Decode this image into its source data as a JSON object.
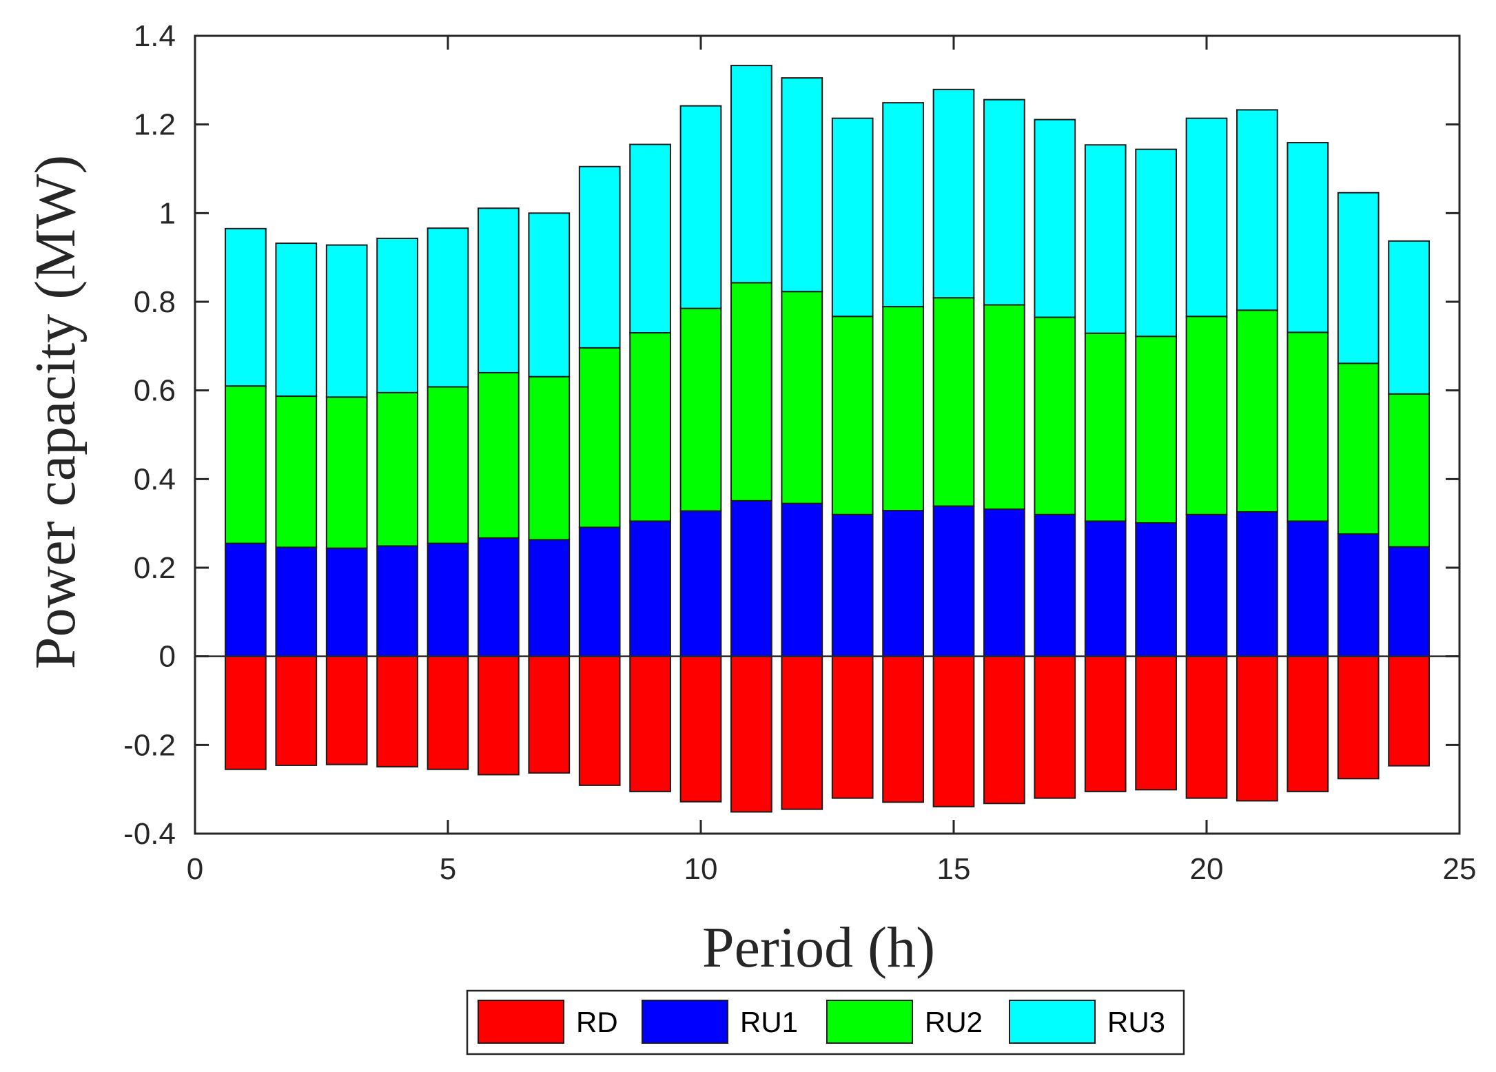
{
  "chart_data": {
    "type": "bar",
    "stacked": true,
    "title": "",
    "xlabel": "Period (h)",
    "ylabel": "Power capacity (MW)",
    "xlim": [
      0,
      25
    ],
    "ylim": [
      -0.4,
      1.4
    ],
    "xticks": [
      "0",
      "5",
      "10",
      "15",
      "20",
      "25"
    ],
    "yticks": [
      "-0.4",
      "-0.2",
      "0",
      "0.2",
      "0.4",
      "0.6",
      "0.8",
      "1",
      "1.2",
      "1.4"
    ],
    "grid": false,
    "legend_position": "bottom",
    "x": [
      1,
      2,
      3,
      4,
      5,
      6,
      7,
      8,
      9,
      10,
      11,
      12,
      13,
      14,
      15,
      16,
      17,
      18,
      19,
      20,
      21,
      22,
      23,
      24
    ],
    "series": [
      {
        "name": "RD",
        "color": "#ff0000",
        "values": [
          -0.255,
          -0.246,
          -0.244,
          -0.249,
          -0.255,
          -0.267,
          -0.263,
          -0.291,
          -0.305,
          -0.328,
          -0.351,
          -0.345,
          -0.32,
          -0.329,
          -0.339,
          -0.332,
          -0.32,
          -0.305,
          -0.301,
          -0.32,
          -0.326,
          -0.305,
          -0.276,
          -0.247
        ]
      },
      {
        "name": "RU1",
        "color": "#0000ff",
        "values": [
          0.255,
          0.246,
          0.244,
          0.249,
          0.255,
          0.267,
          0.263,
          0.291,
          0.305,
          0.328,
          0.351,
          0.345,
          0.32,
          0.329,
          0.339,
          0.332,
          0.32,
          0.305,
          0.301,
          0.32,
          0.326,
          0.305,
          0.276,
          0.247
        ]
      },
      {
        "name": "RU2",
        "color": "#00ff00",
        "values": [
          0.355,
          0.341,
          0.341,
          0.346,
          0.353,
          0.373,
          0.368,
          0.405,
          0.425,
          0.457,
          0.492,
          0.478,
          0.447,
          0.46,
          0.47,
          0.461,
          0.445,
          0.424,
          0.421,
          0.447,
          0.455,
          0.426,
          0.385,
          0.345
        ]
      },
      {
        "name": "RU3",
        "color": "#00ffff",
        "values": [
          0.355,
          0.345,
          0.343,
          0.348,
          0.358,
          0.371,
          0.369,
          0.409,
          0.425,
          0.457,
          0.49,
          0.482,
          0.447,
          0.46,
          0.47,
          0.463,
          0.446,
          0.425,
          0.422,
          0.447,
          0.452,
          0.428,
          0.385,
          0.345
        ]
      }
    ]
  }
}
